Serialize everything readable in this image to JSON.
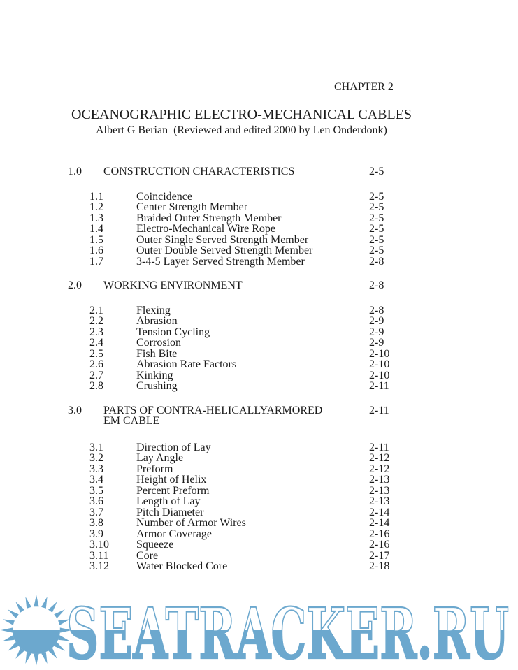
{
  "document": {
    "chapter_label": "CHAPTER 2",
    "title": "OCEANOGRAPHIC ELECTRO-MECHANICAL CABLES",
    "byline": "Albert G Berian  (Reviewed and edited 2000 by Len Onderdonk)"
  },
  "toc": {
    "sections": [
      {
        "num": "1.0",
        "title": "CONSTRUCTION CHARACTERISTICS",
        "page": "2-5",
        "items": [
          {
            "num": "1.1",
            "title": "Coincidence",
            "page": "2-5"
          },
          {
            "num": "1.2",
            "title": "Center Strength Member",
            "page": "2-5"
          },
          {
            "num": "1.3",
            "title": "Braided Outer Strength Member",
            "page": "2-5"
          },
          {
            "num": "1.4",
            "title": "Electro-Mechanical Wire Rope",
            "page": "2-5"
          },
          {
            "num": "1.5",
            "title": "Outer Single Served Strength Member",
            "page": "2-5"
          },
          {
            "num": "1.6",
            "title": "Outer Double Served Strength Member",
            "page": "2-5"
          },
          {
            "num": "1.7",
            "title": "3-4-5 Layer Served Strength Member",
            "page": "2-8"
          }
        ]
      },
      {
        "num": "2.0",
        "title": "WORKING ENVIRONMENT",
        "page": "2-8",
        "items": [
          {
            "num": "2.1",
            "title": "Flexing",
            "page": "2-8"
          },
          {
            "num": "2.2",
            "title": "Abrasion",
            "page": "2-9"
          },
          {
            "num": "2.3",
            "title": "Tension Cycling",
            "page": "2-9"
          },
          {
            "num": "2.4",
            "title": "Corrosion",
            "page": "2-9"
          },
          {
            "num": "2.5",
            "title": "Fish Bite",
            "page": "2-10"
          },
          {
            "num": "2.6",
            "title": "Abrasion Rate Factors",
            "page": "2-10"
          },
          {
            "num": "2.7",
            "title": "Kinking",
            "page": "2-10"
          },
          {
            "num": "2.8",
            "title": "Crushing",
            "page": "2-11"
          }
        ]
      },
      {
        "num": "3.0",
        "title": "PARTS OF CONTRA-HELICALLYARMORED",
        "title2": "EM CABLE",
        "page": "2-11",
        "items": [
          {
            "num": "3.1",
            "title": "Direction of Lay",
            "page": "2-11"
          },
          {
            "num": "3.2",
            "title": "Lay Angle",
            "page": "2-12"
          },
          {
            "num": "3.3",
            "title": "Preform",
            "page": "2-12"
          },
          {
            "num": "3.4",
            "title": "Height of Helix",
            "page": "2-13"
          },
          {
            "num": "3.5",
            "title": "Percent Preform",
            "page": "2-13"
          },
          {
            "num": "3.6",
            "title": "Length of Lay",
            "page": "2-13"
          },
          {
            "num": "3.7",
            "title": "Pitch Diameter",
            "page": "2-14"
          },
          {
            "num": "3.8",
            "title": "Number of Armor Wires",
            "page": "2-14"
          },
          {
            "num": "3.9",
            "title": "Armor Coverage",
            "page": "2-16"
          },
          {
            "num": "3.10",
            "title": "Squeeze",
            "page": "2-16"
          },
          {
            "num": "3.11",
            "title": "Core",
            "page": "2-17"
          },
          {
            "num": "3.12",
            "title": "Water Blocked Core",
            "page": "2-18"
          }
        ]
      }
    ]
  },
  "watermark": {
    "text": "SEATRACKER.RU",
    "icon": "sun-icon",
    "color": "#6ca8ce",
    "text_top_fill": "#ffffff"
  }
}
